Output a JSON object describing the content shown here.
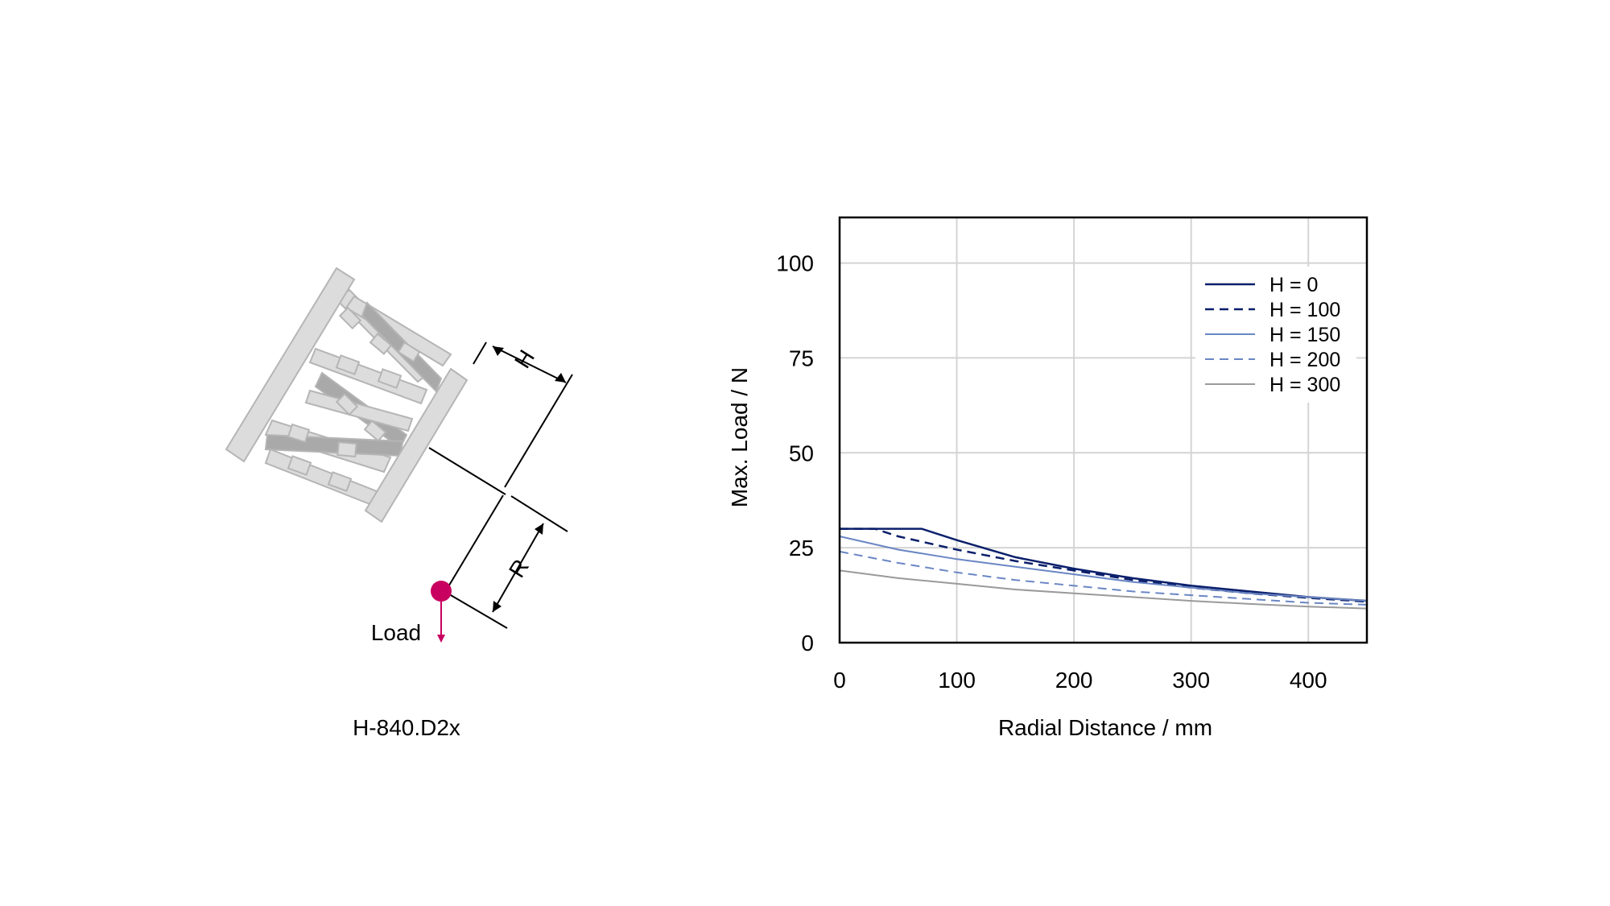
{
  "diagram": {
    "label_h": "H",
    "label_r": "R",
    "label_load": "Load",
    "model": "H-840.D2x",
    "colors": {
      "part": "#dcdcdc",
      "part_stroke": "#b5b5b5",
      "strut_dark": "#a9a9a9",
      "load": "#c8005f"
    }
  },
  "chart_data": {
    "type": "line",
    "title": "",
    "xlabel": "Radial Distance / mm",
    "ylabel": "Max. Load / N",
    "xlim": [
      0,
      450
    ],
    "ylim": [
      0,
      112
    ],
    "xticks": [
      "0",
      "100",
      "200",
      "300",
      "400"
    ],
    "yticks": [
      "0",
      "25",
      "50",
      "75",
      "100"
    ],
    "grid": true,
    "legend_position": "top-right",
    "series": [
      {
        "name": "H = 0",
        "color": "#0b1f6b",
        "dash": "solid",
        "x": [
          0,
          70,
          100,
          150,
          200,
          250,
          300,
          350,
          400,
          450
        ],
        "y": [
          30,
          30,
          27,
          22.5,
          19.5,
          17,
          15,
          13.5,
          12,
          11
        ]
      },
      {
        "name": "H = 100",
        "color": "#0b1f6b",
        "dash": "dashed",
        "x": [
          0,
          30,
          50,
          100,
          150,
          200,
          250,
          300,
          350,
          400,
          450
        ],
        "y": [
          30,
          30,
          28,
          24.5,
          21.5,
          19,
          16.5,
          14.5,
          13,
          11.8,
          10.8
        ]
      },
      {
        "name": "H = 150",
        "color": "#6a86c4",
        "dash": "solid",
        "x": [
          0,
          50,
          100,
          150,
          200,
          250,
          300,
          350,
          400,
          450
        ],
        "y": [
          28,
          24.5,
          22,
          20,
          18,
          16,
          14.5,
          13,
          12,
          11
        ]
      },
      {
        "name": "H = 200",
        "color": "#6a86c4",
        "dash": "dashed",
        "x": [
          0,
          50,
          100,
          150,
          200,
          250,
          300,
          350,
          400,
          450
        ],
        "y": [
          24,
          21,
          18.5,
          16.5,
          15,
          13.5,
          12.5,
          11.5,
          10.5,
          10
        ]
      },
      {
        "name": "H = 300",
        "color": "#9a9a9a",
        "dash": "solid",
        "x": [
          0,
          50,
          100,
          150,
          200,
          250,
          300,
          350,
          400,
          450
        ],
        "y": [
          19,
          17,
          15.5,
          14,
          13,
          12,
          11,
          10.2,
          9.5,
          9
        ]
      }
    ]
  }
}
